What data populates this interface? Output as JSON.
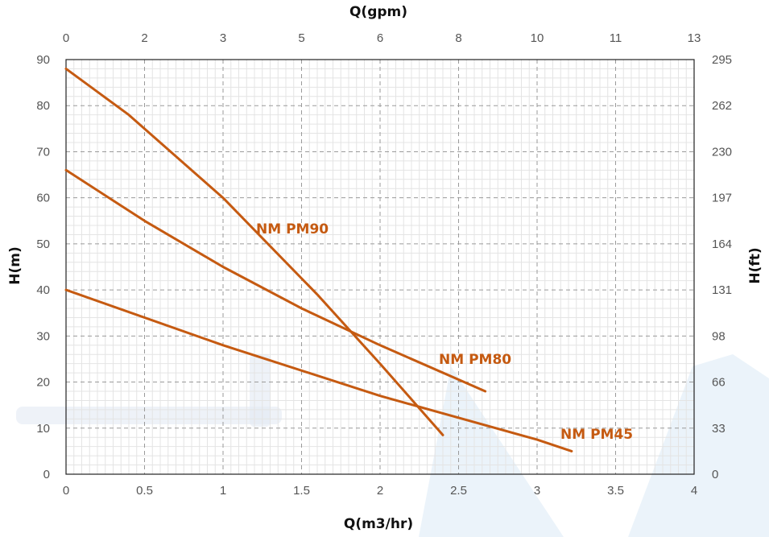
{
  "chart_data": {
    "type": "line",
    "xlabel": "Q(m3/hr)",
    "x2label": "Q(gpm)",
    "ylabel": "H(m)",
    "y2label": "H(ft)",
    "xlim": [
      0,
      4
    ],
    "ylim": [
      0,
      90
    ],
    "x_ticks": [
      "0",
      "0.5",
      "1",
      "1.5",
      "2",
      "2.5",
      "3",
      "3.5",
      "4"
    ],
    "x2_ticks": [
      "0",
      "2",
      "3",
      "5",
      "6",
      "8",
      "10",
      "11",
      "13"
    ],
    "y_ticks": [
      "0",
      "10",
      "20",
      "30",
      "40",
      "50",
      "60",
      "70",
      "80",
      "90"
    ],
    "y2_ticks": [
      "0",
      "33",
      "66",
      "98",
      "131",
      "164",
      "197",
      "230",
      "262",
      "295"
    ],
    "grid": true,
    "line_color": "#c55a11",
    "series": [
      {
        "name": "NM PM90",
        "x": [
          0,
          0.4,
          1.0,
          1.6,
          2.0,
          2.4
        ],
        "y": [
          88,
          78,
          60,
          39,
          24,
          8.5
        ]
      },
      {
        "name": "NM PM80",
        "x": [
          0,
          0.5,
          1.0,
          1.5,
          2.0,
          2.67
        ],
        "y": [
          66,
          55,
          45,
          36,
          28,
          18
        ]
      },
      {
        "name": "NM PM45",
        "x": [
          0,
          1.0,
          2.0,
          3.0,
          3.22
        ],
        "y": [
          40,
          28,
          17,
          7.5,
          5
        ]
      }
    ]
  }
}
